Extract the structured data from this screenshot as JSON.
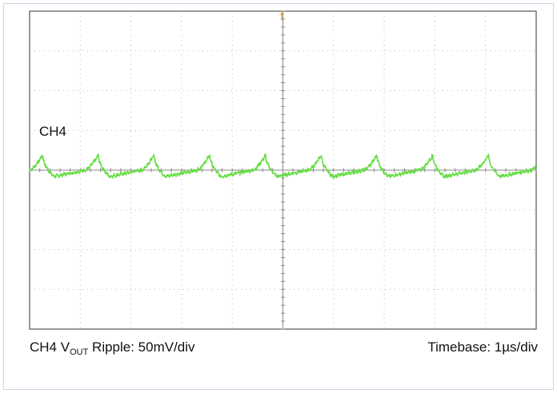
{
  "chart_data": {
    "type": "line",
    "channel_label": "CH4",
    "caption_left": {
      "prefix": "CH4 V",
      "subscript": "OUT",
      "suffix": " Ripple: 50mV/div"
    },
    "caption_right": "Timebase: 1µs/div",
    "trigger_marker": "†",
    "grid": true,
    "x_divisions": 10,
    "y_divisions": 8,
    "xlim": [
      0,
      10
    ],
    "ylim": [
      -4,
      4
    ],
    "series": [
      {
        "color": "#66dd44",
        "waveform": {
          "period_div": 1.1,
          "peak_phase_div": 0.26,
          "peak_level_div": 0.38,
          "trough_level_div": -0.16,
          "baseline_level_div": 0.0,
          "start_div": 0.0,
          "end_div": 10.0
        }
      }
    ]
  }
}
